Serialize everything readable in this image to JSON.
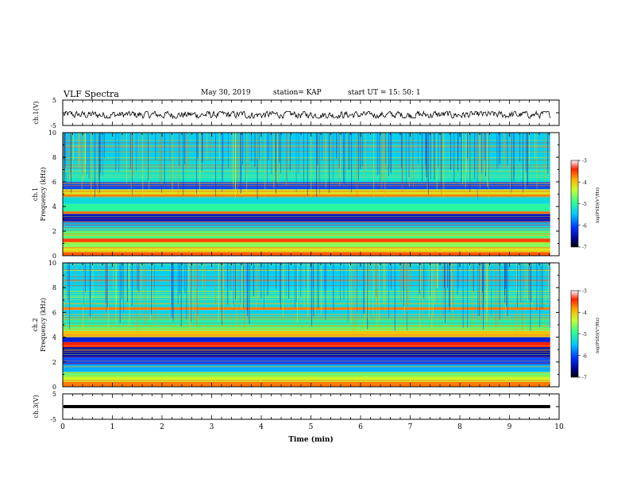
{
  "header": {
    "title": "VLF Spectra",
    "date": "May 30, 2019",
    "station": "station= KAP",
    "start_ut": "start  UT =   15: 50: 1"
  },
  "chart_data": [
    {
      "type": "line",
      "name": "ch1-waveform",
      "ylabel": "ch.1(V)",
      "ylim": [
        -5,
        5
      ],
      "xlim": [
        0,
        10
      ],
      "x_extent": [
        0,
        9.82
      ],
      "y_center": -0.8,
      "y_amplitude": 1.3,
      "yticks": [
        5,
        -5
      ]
    },
    {
      "type": "heatmap",
      "name": "ch1-spectrogram",
      "ylabel_top": "ch.1",
      "ylabel": "Frequency (kHz)",
      "ylim": [
        0,
        10
      ],
      "xlim": [
        0,
        10
      ],
      "x_extent": [
        0,
        9.82
      ],
      "yticks": [
        0,
        2,
        4,
        6,
        8,
        10
      ],
      "colorbar": {
        "label": "log(PSD)(V²/Hz)",
        "range": [
          -7,
          -3
        ],
        "ticks": [
          -3,
          -4,
          -5,
          -6,
          -7
        ]
      },
      "bands": [
        {
          "f0": 0.0,
          "f1": 0.3,
          "level": -3.6
        },
        {
          "f0": 0.3,
          "f1": 0.7,
          "level": -4.2
        },
        {
          "f0": 0.7,
          "f1": 1.1,
          "level": -4.6
        },
        {
          "f0": 1.1,
          "f1": 1.4,
          "level": -3.5
        },
        {
          "f0": 1.4,
          "f1": 2.0,
          "level": -4.8
        },
        {
          "f0": 2.0,
          "f1": 2.4,
          "level": -5.3
        },
        {
          "f0": 2.4,
          "f1": 2.8,
          "level": -5.6
        },
        {
          "f0": 2.8,
          "f1": 3.4,
          "level": -6.4
        },
        {
          "f0": 3.4,
          "f1": 3.6,
          "level": -3.6
        },
        {
          "f0": 3.6,
          "f1": 4.2,
          "level": -5.0
        },
        {
          "f0": 4.2,
          "f1": 4.8,
          "level": -5.3
        },
        {
          "f0": 4.8,
          "f1": 5.0,
          "level": -3.7
        },
        {
          "f0": 5.0,
          "f1": 5.4,
          "level": -4.2
        },
        {
          "f0": 5.4,
          "f1": 6.0,
          "level": -6.0
        },
        {
          "f0": 6.0,
          "f1": 7.0,
          "level": -5.2
        },
        {
          "f0": 7.0,
          "f1": 8.0,
          "level": -5.3
        },
        {
          "f0": 8.0,
          "f1": 9.0,
          "level": -5.4
        },
        {
          "f0": 9.0,
          "f1": 10.0,
          "level": -5.4
        }
      ]
    },
    {
      "type": "heatmap",
      "name": "ch2-spectrogram",
      "ylabel_top": "ch.2",
      "ylabel": "Frequency (kHz)",
      "ylim": [
        0,
        10
      ],
      "xlim": [
        0,
        10
      ],
      "x_extent": [
        0,
        9.82
      ],
      "yticks": [
        0,
        2,
        4,
        6,
        8,
        10
      ],
      "colorbar": {
        "label": "log(PSD)(V²/Hz)",
        "range": [
          -7,
          -3
        ],
        "ticks": [
          -3,
          -4,
          -5,
          -6,
          -7
        ]
      },
      "bands": [
        {
          "f0": 0.0,
          "f1": 0.4,
          "level": -3.7
        },
        {
          "f0": 0.4,
          "f1": 0.8,
          "level": -4.3
        },
        {
          "f0": 0.8,
          "f1": 1.2,
          "level": -4.7
        },
        {
          "f0": 1.2,
          "f1": 1.8,
          "level": -5.6
        },
        {
          "f0": 1.8,
          "f1": 2.4,
          "level": -6.0
        },
        {
          "f0": 2.4,
          "f1": 3.2,
          "level": -6.5
        },
        {
          "f0": 3.2,
          "f1": 3.6,
          "level": -3.4
        },
        {
          "f0": 3.6,
          "f1": 4.0,
          "level": -6.3
        },
        {
          "f0": 4.0,
          "f1": 4.5,
          "level": -4.0
        },
        {
          "f0": 4.5,
          "f1": 5.0,
          "level": -4.8
        },
        {
          "f0": 5.0,
          "f1": 5.6,
          "level": -5.1
        },
        {
          "f0": 5.6,
          "f1": 6.2,
          "level": -5.4
        },
        {
          "f0": 6.2,
          "f1": 6.4,
          "level": -3.7
        },
        {
          "f0": 6.4,
          "f1": 7.0,
          "level": -5.3
        },
        {
          "f0": 7.0,
          "f1": 8.0,
          "level": -5.3
        },
        {
          "f0": 8.0,
          "f1": 9.0,
          "level": -5.4
        },
        {
          "f0": 9.0,
          "f1": 10.0,
          "level": -5.4
        }
      ]
    },
    {
      "type": "line",
      "name": "ch3-waveform",
      "ylabel": "ch.3(V)",
      "ylim": [
        -5,
        5
      ],
      "xlim": [
        0,
        10
      ],
      "x_extent": [
        0,
        9.82
      ],
      "y_value": 0,
      "yticks": [
        5,
        -5
      ],
      "xlabel": "Time (min)",
      "xticks": [
        0,
        1,
        2,
        3,
        4,
        5,
        6,
        7,
        8,
        9,
        10
      ]
    }
  ]
}
